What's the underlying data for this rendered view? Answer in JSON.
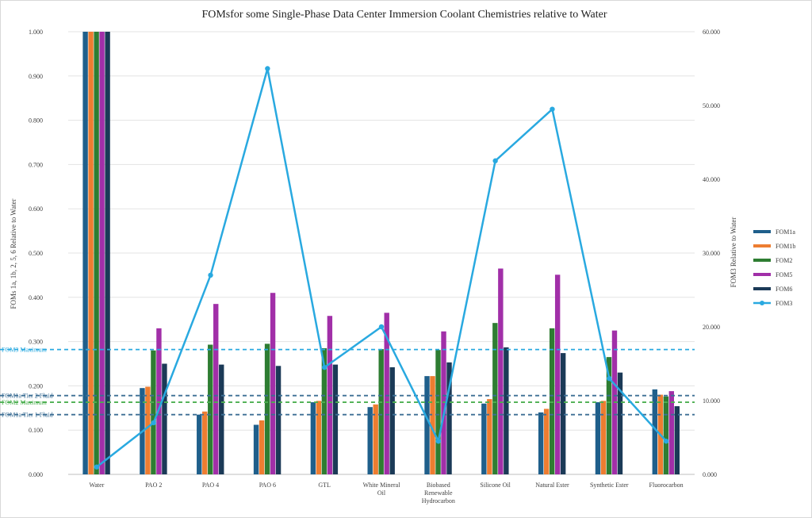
{
  "chart_data": {
    "type": "bar",
    "title": "FOMsfor some Single-Phase Data Center Immersion Coolant Chemistries relative to Water",
    "ylabel": "FOMs 1a, 1b, 2, 5, 6 Relative to Water",
    "y2label": "FOM3 Relative to Water",
    "ylim": [
      0,
      1
    ],
    "y2lim": [
      0,
      60
    ],
    "yticks": [
      "0.000",
      "0.100",
      "0.200",
      "0.300",
      "0.400",
      "0.500",
      "0.600",
      "0.700",
      "0.800",
      "0.900",
      "1.000"
    ],
    "y2ticks": [
      "0.000",
      "10.000",
      "20.000",
      "30.000",
      "40.000",
      "50.000",
      "60.000"
    ],
    "grid": true,
    "legend_position": "right",
    "categories": [
      [
        "Water"
      ],
      [
        "PAO 2"
      ],
      [
        "PAO 4"
      ],
      [
        "PAO 6"
      ],
      [
        "GTL"
      ],
      [
        "White Mineral",
        "Oil"
      ],
      [
        "Biobased",
        "Renewable",
        "Hydrocarbon"
      ],
      [
        "Silicone Oil"
      ],
      [
        "Natural Ester"
      ],
      [
        "Synthetic Ester"
      ],
      [
        "Fluorocarbon"
      ]
    ],
    "series": [
      {
        "name": "FOM1a",
        "color": "#1f5f8b",
        "axis": "left",
        "values": [
          1.0,
          0.195,
          0.135,
          0.112,
          0.163,
          0.152,
          0.222,
          0.16,
          0.14,
          0.163,
          0.192
        ]
      },
      {
        "name": "FOM1b",
        "color": "#ed7d31",
        "axis": "left",
        "values": [
          1.0,
          0.198,
          0.142,
          0.122,
          0.166,
          0.158,
          0.222,
          0.17,
          0.148,
          0.166,
          0.18
        ]
      },
      {
        "name": "FOM2",
        "color": "#2e7d32",
        "axis": "left",
        "values": [
          1.0,
          0.28,
          0.293,
          0.295,
          0.285,
          0.283,
          0.281,
          0.342,
          0.33,
          0.265,
          0.176
        ]
      },
      {
        "name": "FOM5",
        "color": "#a12fa8",
        "axis": "left",
        "values": [
          1.0,
          0.33,
          0.385,
          0.41,
          0.358,
          0.365,
          0.323,
          0.465,
          0.451,
          0.325,
          0.188
        ]
      },
      {
        "name": "FOM6",
        "color": "#1b3a57",
        "axis": "left",
        "values": [
          1.0,
          0.25,
          0.248,
          0.245,
          0.248,
          0.242,
          0.253,
          0.287,
          0.274,
          0.23,
          0.154
        ]
      },
      {
        "name": "FOM3",
        "color": "#29a9e0",
        "axis": "right",
        "type": "line",
        "values": [
          1.0,
          7.0,
          27.0,
          55.0,
          14.5,
          20.0,
          4.5,
          42.5,
          49.5,
          13.0,
          4.5
        ]
      }
    ],
    "reference_lines": [
      {
        "label": "FOM3 Maximum",
        "value": 0.282,
        "color": "#29a9e0"
      },
      {
        "label": "FOM1a Tier 2 Fluid",
        "value": 0.178,
        "color": "#3d6f95"
      },
      {
        "label": "FOM2 Maximum",
        "value": 0.163,
        "color": "#4caf50"
      },
      {
        "label": "FOM1a Tier 1 Fluid",
        "value": 0.135,
        "color": "#3d6f95"
      }
    ]
  }
}
